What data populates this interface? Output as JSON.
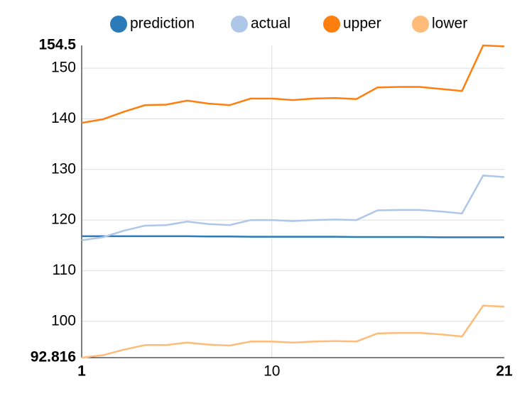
{
  "chart_data": {
    "type": "line",
    "x": [
      1,
      2,
      3,
      4,
      5,
      6,
      7,
      8,
      9,
      10,
      11,
      12,
      13,
      14,
      15,
      16,
      17,
      18,
      19,
      20,
      21
    ],
    "series": [
      {
        "name": "prediction",
        "color": "#2b7bb9",
        "values": [
          116.8,
          116.8,
          116.8,
          116.8,
          116.8,
          116.8,
          116.75,
          116.75,
          116.7,
          116.7,
          116.7,
          116.7,
          116.7,
          116.65,
          116.65,
          116.65,
          116.65,
          116.6,
          116.6,
          116.6,
          116.6
        ]
      },
      {
        "name": "actual",
        "color": "#aec7e8",
        "values": [
          116.0,
          116.6,
          117.9,
          118.9,
          119.0,
          119.7,
          119.2,
          119.0,
          120.0,
          120.0,
          119.8,
          120.0,
          120.1,
          120.0,
          121.9,
          122.0,
          122.0,
          121.7,
          121.3,
          128.8,
          128.5
        ]
      },
      {
        "name": "upper",
        "color": "#ff7f0e",
        "values": [
          139.2,
          139.9,
          141.4,
          142.7,
          142.8,
          143.6,
          143.0,
          142.7,
          144.0,
          144.0,
          143.7,
          144.0,
          144.1,
          143.9,
          146.2,
          146.3,
          146.3,
          145.9,
          145.5,
          154.5,
          154.3
        ]
      },
      {
        "name": "lower",
        "color": "#ffbb78",
        "values": [
          92.816,
          93.3,
          94.4,
          95.3,
          95.3,
          95.8,
          95.4,
          95.2,
          96.0,
          96.0,
          95.8,
          96.0,
          96.1,
          96.0,
          97.6,
          97.7,
          97.7,
          97.4,
          97.0,
          103.1,
          102.9
        ]
      }
    ],
    "xlim": [
      1,
      21
    ],
    "xticks": [
      1,
      10,
      21
    ],
    "ylim": [
      92.816,
      154.5
    ],
    "yticks": [
      92.816,
      100,
      110,
      120,
      130,
      140,
      150,
      154.5
    ],
    "grid": true
  }
}
